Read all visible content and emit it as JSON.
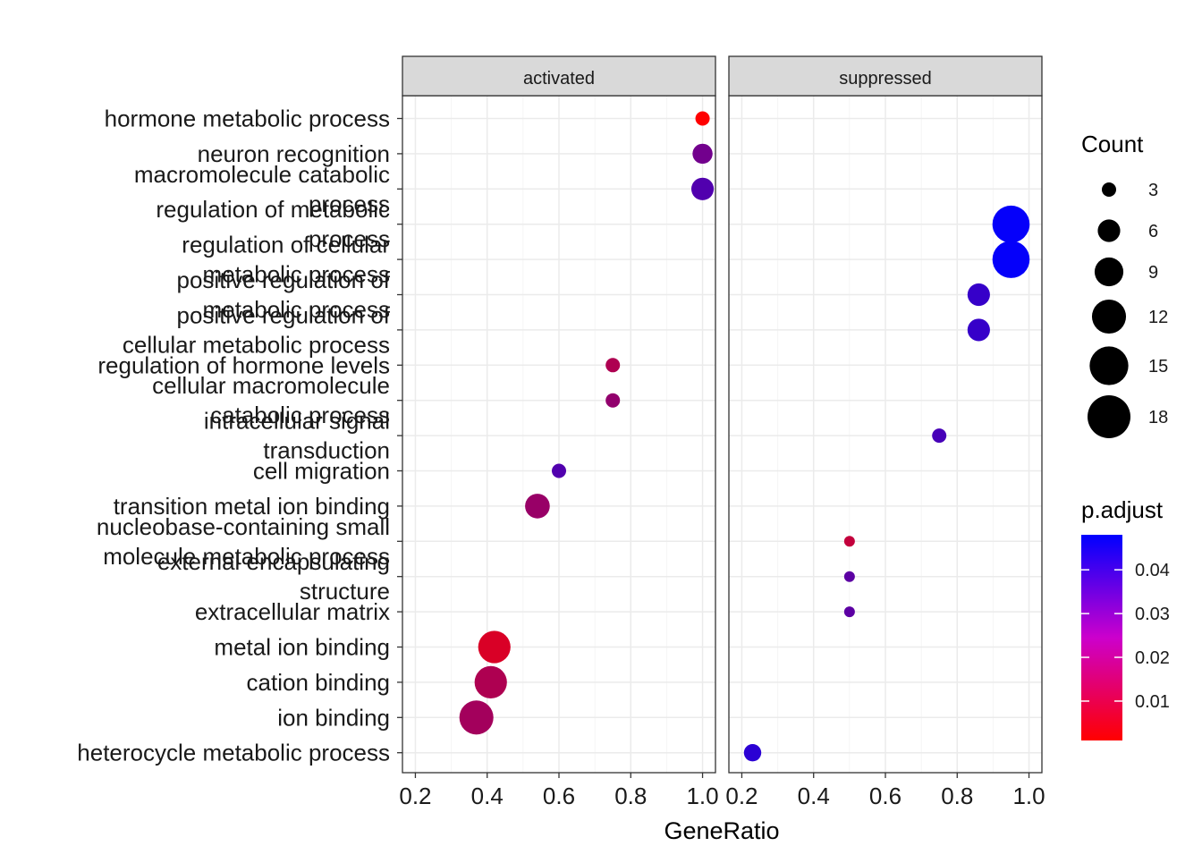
{
  "chart_data": {
    "type": "scatter",
    "title": "",
    "xlabel": "GeneRatio",
    "ylabel": "",
    "xlim": [
      0.2,
      1.0
    ],
    "x_ticks": [
      "0.2",
      "0.4",
      "0.6",
      "0.8",
      "1.0"
    ],
    "grid": true,
    "facets": [
      "activated",
      "suppressed"
    ],
    "categories": [
      "hormone metabolic process",
      "neuron recognition",
      "macromolecule catabolic process",
      "regulation of metabolic process",
      "regulation of cellular metabolic process",
      "positive regulation of metabolic process",
      "positive regulation of cellular metabolic process",
      "regulation of hormone levels",
      "cellular macromolecule catabolic process",
      "intracellular signal transduction",
      "cell migration",
      "transition metal ion binding",
      "nucleobase-containing small molecule metabolic process",
      "external encapsulating structure",
      "extracellular matrix",
      "metal ion binding",
      "cation binding",
      "ion binding",
      "heterocycle metabolic process"
    ],
    "points": [
      {
        "facet": "activated",
        "term": "hormone metabolic process",
        "x": 1.0,
        "count": 3,
        "p_adjust": 0.001
      },
      {
        "facet": "activated",
        "term": "neuron recognition",
        "x": 1.0,
        "count": 5,
        "p_adjust": 0.027
      },
      {
        "facet": "activated",
        "term": "macromolecule catabolic process",
        "x": 1.0,
        "count": 6,
        "p_adjust": 0.033
      },
      {
        "facet": "activated",
        "term": "regulation of hormone levels",
        "x": 0.75,
        "count": 3,
        "p_adjust": 0.016
      },
      {
        "facet": "activated",
        "term": "cellular macromolecule catabolic process",
        "x": 0.75,
        "count": 3,
        "p_adjust": 0.021
      },
      {
        "facet": "activated",
        "term": "cell migration",
        "x": 0.6,
        "count": 3,
        "p_adjust": 0.033
      },
      {
        "facet": "activated",
        "term": "transition metal ion binding",
        "x": 0.54,
        "count": 7,
        "p_adjust": 0.02
      },
      {
        "facet": "activated",
        "term": "metal ion binding",
        "x": 0.42,
        "count": 11,
        "p_adjust": 0.008
      },
      {
        "facet": "activated",
        "term": "cation binding",
        "x": 0.41,
        "count": 11,
        "p_adjust": 0.016
      },
      {
        "facet": "activated",
        "term": "ion binding",
        "x": 0.37,
        "count": 12,
        "p_adjust": 0.018
      },
      {
        "facet": "suppressed",
        "term": "regulation of metabolic process",
        "x": 0.95,
        "count": 14,
        "p_adjust": 0.047
      },
      {
        "facet": "suppressed",
        "term": "regulation of cellular metabolic process",
        "x": 0.95,
        "count": 14,
        "p_adjust": 0.047
      },
      {
        "facet": "suppressed",
        "term": "positive regulation of metabolic process",
        "x": 0.86,
        "count": 6,
        "p_adjust": 0.038
      },
      {
        "facet": "suppressed",
        "term": "positive regulation of cellular metabolic process",
        "x": 0.86,
        "count": 6,
        "p_adjust": 0.038
      },
      {
        "facet": "suppressed",
        "term": "intracellular signal transduction",
        "x": 0.75,
        "count": 3,
        "p_adjust": 0.035
      },
      {
        "facet": "suppressed",
        "term": "nucleobase-containing small molecule metabolic process",
        "x": 0.5,
        "count": 2,
        "p_adjust": 0.012
      },
      {
        "facet": "suppressed",
        "term": "external encapsulating structure",
        "x": 0.5,
        "count": 2,
        "p_adjust": 0.031
      },
      {
        "facet": "suppressed",
        "term": "extracellular matrix",
        "x": 0.5,
        "count": 2,
        "p_adjust": 0.031
      },
      {
        "facet": "suppressed",
        "term": "heterocycle metabolic process",
        "x": 0.23,
        "count": 4,
        "p_adjust": 0.04
      }
    ],
    "legend_size": {
      "title": "Count",
      "values": [
        3,
        6,
        9,
        12,
        15,
        18
      ],
      "labels": [
        "3",
        "6",
        "9",
        "12",
        "15",
        "18"
      ]
    },
    "legend_color": {
      "title": "p.adjust",
      "range": [
        0.001,
        0.048
      ],
      "tick_values": [
        0.01,
        0.02,
        0.03,
        0.04
      ],
      "tick_labels": [
        "0.01",
        "0.02",
        "0.03",
        "0.04"
      ],
      "low_color": "#FF0000",
      "high_color": "#0000FF"
    },
    "legend_placement": "right",
    "colors": {
      "strip_fill": "#D9D9D9",
      "grid_major": "#EBEBEB",
      "grid_minor": "#F5F5F5",
      "panel_border": "#333333",
      "axis_text": "#000000",
      "tick_text": "#1A1A1A"
    }
  }
}
